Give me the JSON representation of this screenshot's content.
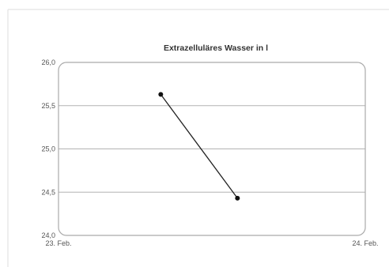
{
  "chart_data": {
    "type": "line",
    "title": "Extrazelluläres Wasser in l",
    "xlabel": "",
    "ylabel": "",
    "x_tick_labels": [
      "23. Feb.",
      "24. Feb."
    ],
    "xlim": [
      "23. Feb.",
      "24. Feb."
    ],
    "ylim": [
      24.0,
      26.0
    ],
    "y_ticks": [
      24.0,
      24.5,
      25.0,
      25.5,
      26.0
    ],
    "y_tick_labels": [
      "24,0",
      "24,5",
      "25,0",
      "25,5",
      "26,0"
    ],
    "series": [
      {
        "x": [
          "23. Feb., 08:00",
          "23. Feb., 14:00"
        ],
        "values": [
          25.63,
          24.43
        ]
      }
    ],
    "grid": true,
    "legend": "none",
    "colors": {
      "line": "#222222",
      "marker": "#111111",
      "grid": "#b3b3b3",
      "frame": "#aaaaaa",
      "title": "#333333",
      "tick_label": "#555555"
    }
  }
}
